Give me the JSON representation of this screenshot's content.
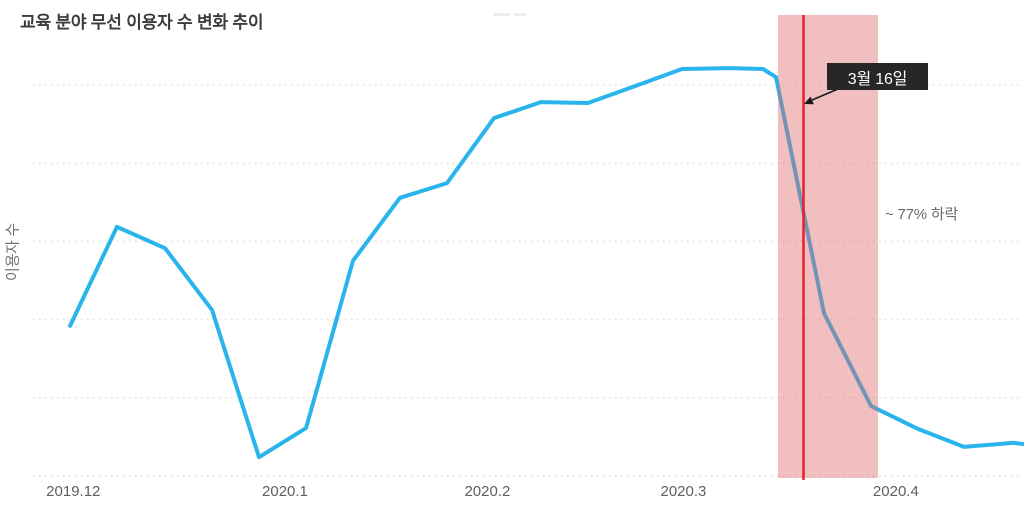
{
  "page": {
    "background": "#ffffff"
  },
  "header": {
    "title": "교육 분야 무선 이용자 수 변화 추이"
  },
  "chart_data": {
    "type": "line",
    "title": "교육 분야 무선 이용자 수 변화 추이",
    "xlabel": "",
    "ylabel": "이용자 수",
    "y_axis_note": "no numeric ticks shown; values are relative user counts, peak = 100",
    "grid": {
      "horizontal_dotted_lines": 6,
      "color": "#dfdfdf"
    },
    "x_ticks": [
      {
        "label": "2019.12",
        "pos": 0.0407
      },
      {
        "label": "2020.1",
        "pos": 0.2545
      },
      {
        "label": "2020.2",
        "pos": 0.459
      },
      {
        "label": "2020.3",
        "pos": 0.657
      },
      {
        "label": "2020.4",
        "pos": 0.8716
      }
    ],
    "series": [
      {
        "name": "이용자 수",
        "color": "#29b5ec",
        "points": [
          [
            0.0374,
            37.2
          ],
          [
            0.0848,
            61.4
          ],
          [
            0.1333,
            56.2
          ],
          [
            0.1808,
            41.1
          ],
          [
            0.2283,
            5.1
          ],
          [
            0.2758,
            12.2
          ],
          [
            0.3232,
            53.1
          ],
          [
            0.3707,
            68.5
          ],
          [
            0.4182,
            72.1
          ],
          [
            0.4657,
            88.0
          ],
          [
            0.5131,
            91.9
          ],
          [
            0.5606,
            91.7
          ],
          [
            0.6081,
            95.8
          ],
          [
            0.6556,
            100.0
          ],
          [
            0.703,
            100.2
          ],
          [
            0.7374,
            100.0
          ],
          [
            0.7505,
            98.0
          ],
          [
            0.799,
            40.3
          ],
          [
            0.8465,
            17.6
          ],
          [
            0.8939,
            12.0
          ],
          [
            0.9404,
            7.6
          ],
          [
            0.9899,
            8.6
          ],
          [
            1.0,
            8.3
          ]
        ]
      }
    ],
    "annotations": {
      "highlight_band": {
        "x0": 0.7525,
        "x1": 0.8535,
        "color": "rgba(221,103,105,0.42)"
      },
      "vline": {
        "x": 0.7783,
        "color": "#e8202a",
        "label": "3월 16일"
      },
      "callout": {
        "bg": "#272727",
        "fg": "#ffffff"
      },
      "drop_note": {
        "text": "~ 77% 하락",
        "color": "#6a6a6a"
      }
    }
  }
}
